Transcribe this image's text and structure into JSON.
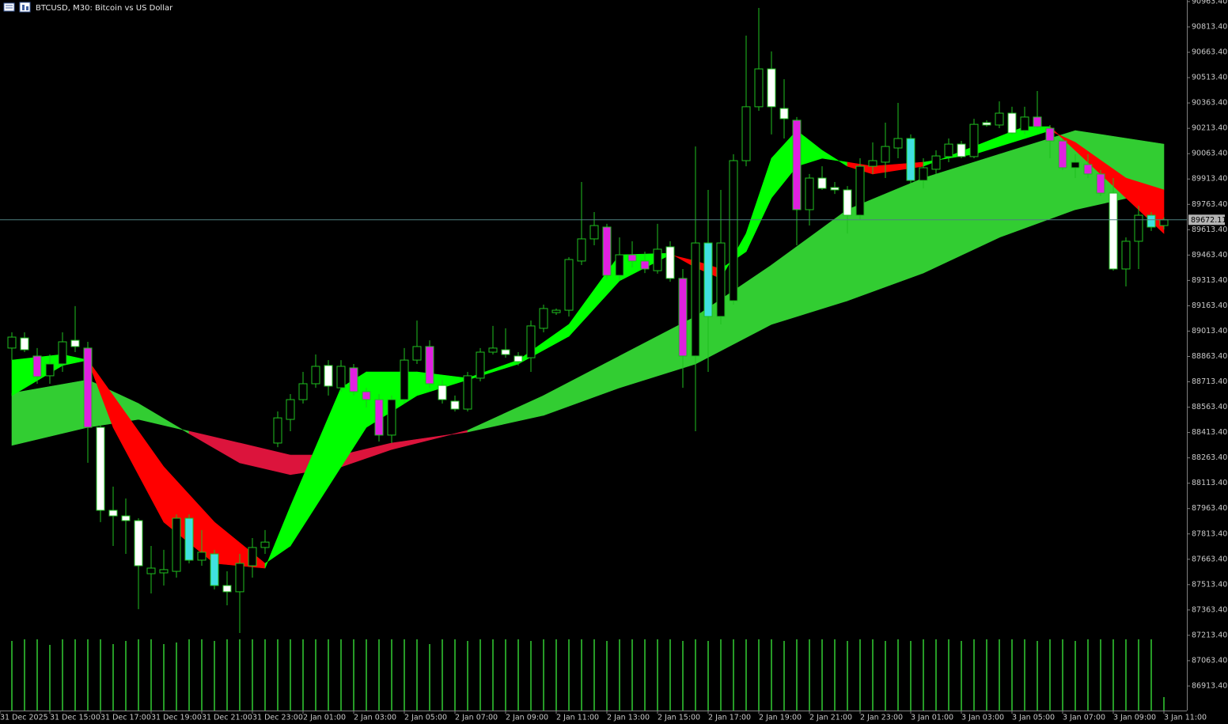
{
  "chart_data": {
    "type": "candlestick",
    "title": "BTCUSD, M30: Bitcoin vs US Dollar",
    "categories": [
      "31 Dec 2025",
      null,
      null,
      "31 Dec 15:00",
      null,
      null,
      null,
      "31 Dec 17:00",
      null,
      null,
      null,
      "31 Dec 19:00",
      null,
      null,
      null,
      "31 Dec 21:00",
      null,
      null,
      null,
      "31 Dec 23:00",
      null,
      null,
      null,
      "2 Jan 01:00",
      null,
      null,
      null,
      "2 Jan 03:00",
      null,
      null,
      null,
      "2 Jan 05:00",
      null,
      null,
      null,
      "2 Jan 07:00",
      null,
      null,
      null,
      "2 Jan 09:00",
      null,
      null,
      null,
      "2 Jan 11:00",
      null,
      null,
      null,
      "2 Jan 13:00",
      null,
      null,
      null,
      "2 Jan 15:00",
      null,
      null,
      null,
      "2 Jan 17:00",
      null,
      null,
      null,
      "2 Jan 19:00",
      null,
      null,
      null,
      "2 Jan 21:00",
      null,
      null,
      null,
      "2 Jan 23:00",
      null,
      null,
      null,
      "3 Jan 01:00",
      null,
      null,
      null,
      "3 Jan 03:00",
      null,
      null,
      null,
      "3 Jan 05:00",
      null,
      null,
      null,
      "3 Jan 07:00",
      null,
      null,
      null,
      "3 Jan 09:00",
      null,
      null,
      null,
      "3 Jan 11:00"
    ],
    "open": [
      88913,
      88973,
      88866,
      88749,
      88819,
      88959,
      88913,
      88444,
      87953,
      87920,
      87892,
      87578,
      87583,
      87592,
      87906,
      87658,
      87695,
      87508,
      87471,
      87625,
      87733,
      88351,
      88491,
      88608,
      88702,
      88810,
      88678,
      88796,
      88655,
      88608,
      88398,
      88608,
      88842,
      88922,
      88692,
      88599,
      88552,
      88735,
      88889,
      88903,
      88866,
      88856,
      89030,
      89123,
      89137,
      89428,
      89559,
      89629,
      89343,
      89465,
      89428,
      89371,
      89512,
      89325,
      88866,
      89535,
      89100,
      89193,
      90022,
      90341,
      90565,
      90331,
      90261,
      89732,
      89919,
      89863,
      89849,
      89699,
      89989,
      90013,
      90097,
      90153,
      89905,
      89971,
      90046,
      90120,
      90046,
      90247,
      90233,
      90303,
      90200,
      90280,
      90214,
      90139,
      89980,
      89999,
      89943,
      89830,
      89381,
      89545,
      89699,
      89638
    ],
    "high": [
      89006,
      89006,
      88913,
      88875,
      89006,
      89161,
      88950,
      88454,
      88093,
      88023,
      87906,
      87742,
      87719,
      87929,
      87929,
      87836,
      87719,
      87592,
      87695,
      87789,
      87836,
      88538,
      88641,
      88772,
      88875,
      88842,
      88842,
      88819,
      88678,
      88641,
      88632,
      88913,
      89076,
      88959,
      88725,
      88632,
      88772,
      88913,
      89044,
      89030,
      88889,
      89076,
      89170,
      89147,
      89451,
      89896,
      89718,
      89648,
      89568,
      89545,
      89484,
      89648,
      89545,
      89381,
      90106,
      89849,
      89849,
      90060,
      90762,
      90926,
      90668,
      90504,
      90280,
      89943,
      89989,
      89896,
      89872,
      90036,
      90130,
      90247,
      90364,
      90177,
      90036,
      90083,
      90153,
      90139,
      90270,
      90261,
      90373,
      90341,
      90341,
      90434,
      90233,
      90153,
      90060,
      90060,
      89966,
      89919,
      89568,
      89755,
      89718,
      89685
    ],
    "low": [
      88842,
      88889,
      88702,
      88702,
      88772,
      88889,
      88234,
      87883,
      87742,
      87695,
      87368,
      87461,
      87508,
      87555,
      87639,
      87625,
      87485,
      87391,
      87227,
      87555,
      87695,
      88327,
      88421,
      88585,
      88678,
      88632,
      88655,
      88632,
      88561,
      88360,
      88351,
      88585,
      88819,
      88678,
      88585,
      88538,
      88538,
      88716,
      88875,
      88856,
      88810,
      88772,
      89006,
      89109,
      89100,
      89404,
      89521,
      89325,
      89311,
      89390,
      89357,
      89353,
      89306,
      88678,
      88421,
      88772,
      89053,
      89170,
      89989,
      90317,
      90177,
      90153,
      89521,
      89638,
      89849,
      89825,
      89591,
      89671,
      89943,
      89919,
      90036,
      89886,
      89858,
      89943,
      90013,
      90036,
      90036,
      90223,
      90214,
      90177,
      90177,
      90214,
      90036,
      89966,
      89919,
      89919,
      89812,
      89371,
      89278,
      89381,
      89606,
      89615
    ],
    "close": [
      88978,
      88903,
      88744,
      88819,
      88950,
      88922,
      88444,
      87953,
      87920,
      87892,
      87625,
      87611,
      87602,
      87906,
      87658,
      87705,
      87508,
      87471,
      87639,
      87733,
      87765,
      88500,
      88608,
      88702,
      88805,
      88688,
      88805,
      88655,
      88608,
      88398,
      88608,
      88842,
      88922,
      88702,
      88608,
      88552,
      88749,
      88889,
      88913,
      88875,
      88833,
      89044,
      89147,
      89137,
      89437,
      89559,
      89638,
      89343,
      89465,
      89428,
      89381,
      89498,
      89325,
      88866,
      89535,
      89100,
      89535,
      90022,
      90341,
      90565,
      90341,
      90270,
      89732,
      89919,
      89858,
      89849,
      89699,
      89989,
      90022,
      90106,
      90153,
      89905,
      89980,
      90050,
      90120,
      90046,
      90237,
      90233,
      90303,
      90186,
      90280,
      90223,
      90139,
      89980,
      90013,
      89943,
      89830,
      89381,
      89545,
      89699,
      89629,
      89672.11
    ],
    "candle_colors": [
      null,
      null,
      "#e020e0",
      null,
      null,
      null,
      "#e020e0",
      null,
      null,
      null,
      null,
      null,
      null,
      null,
      "#40e0e0",
      null,
      "#40e0e0",
      null,
      null,
      null,
      null,
      null,
      null,
      null,
      null,
      null,
      null,
      "#e020e0",
      "#e020e0",
      "#e020e0",
      null,
      null,
      null,
      "#e020e0",
      null,
      null,
      null,
      null,
      null,
      null,
      null,
      null,
      null,
      null,
      null,
      null,
      null,
      "#e020e0",
      null,
      "#e020e0",
      "#e020e0",
      null,
      null,
      "#e020e0",
      null,
      "#40e0e0",
      null,
      null,
      null,
      null,
      null,
      null,
      "#e020e0",
      null,
      null,
      null,
      null,
      null,
      null,
      null,
      null,
      "#40e0e0",
      null,
      null,
      null,
      null,
      null,
      null,
      null,
      null,
      null,
      "#e020e0",
      "#e020e0",
      "#e020e0",
      null,
      "#e020e0",
      "#e020e0",
      null,
      null,
      null,
      "#40e0e0",
      null
    ],
    "bull_fill": "#000000",
    "bear_fill": "#ffffff",
    "body_stroke": "#1fbf1f",
    "wick_color": "#1fbf1f",
    "volumes": [
      88,
      90,
      90,
      83,
      90,
      90,
      90,
      90,
      84,
      88,
      90,
      90,
      84,
      86,
      90,
      90,
      88,
      90,
      90,
      90,
      90,
      90,
      90,
      90,
      90,
      90,
      90,
      90,
      90,
      90,
      90,
      90,
      90,
      84,
      90,
      90,
      88,
      90,
      90,
      90,
      90,
      88,
      90,
      90,
      90,
      90,
      90,
      88,
      90,
      90,
      90,
      90,
      90,
      88,
      90,
      88,
      90,
      90,
      90,
      90,
      90,
      88,
      90,
      90,
      90,
      90,
      88,
      90,
      90,
      88,
      90,
      88,
      90,
      90,
      90,
      88,
      90,
      90,
      90,
      90,
      90,
      88,
      90,
      90,
      88,
      90,
      90,
      90,
      90,
      90,
      90,
      17
    ],
    "volume_color": "#32cd32",
    "ribbons": [
      {
        "index": [
          0,
          6,
          10,
          14,
          18,
          22,
          26,
          30,
          36,
          42,
          48,
          54,
          60,
          66,
          72,
          78,
          84,
          91
        ],
        "fast": [
          88646,
          88725,
          88585,
          88407,
          88234,
          88164,
          88210,
          88313,
          88426,
          88632,
          88866,
          89100,
          89404,
          89732,
          89919,
          90060,
          90200,
          90120
        ],
        "slow": [
          88337,
          88444,
          88491,
          88421,
          88351,
          88280,
          88280,
          88351,
          88416,
          88515,
          88678,
          88819,
          89053,
          89193,
          89357,
          89568,
          89732,
          89849
        ],
        "up_color": "#32cd32",
        "down_color": "#dc143c"
      },
      {
        "index": [
          0,
          4,
          6,
          8,
          12,
          16,
          20,
          22,
          26,
          28,
          32,
          36,
          40,
          44,
          48,
          52,
          54,
          56,
          58,
          60,
          62,
          64,
          66,
          68,
          72,
          76,
          80,
          82,
          84,
          88,
          91
        ],
        "fast": [
          88842,
          88875,
          88842,
          88444,
          87883,
          87639,
          87611,
          87976,
          88678,
          88772,
          88772,
          88735,
          88842,
          89053,
          89465,
          89474,
          89390,
          89325,
          89591,
          90036,
          90200,
          90083,
          89989,
          89943,
          89989,
          90106,
          90223,
          90223,
          90083,
          89802,
          89591
        ],
        "slow": [
          88632,
          88810,
          88842,
          88632,
          88210,
          87883,
          87639,
          87742,
          88210,
          88444,
          88632,
          88725,
          88819,
          88983,
          89311,
          89465,
          89428,
          89381,
          89484,
          89802,
          89989,
          90036,
          90013,
          89989,
          90013,
          90060,
          90153,
          90200,
          90130,
          89919,
          89849
        ],
        "up_color": "#00ff00",
        "down_color": "#ff0000"
      }
    ],
    "current_price": 89672.11,
    "price_line_color": "#4f8080",
    "ylim": [
      86768.2,
      90972.6
    ],
    "yticks": [
      {
        "value": 86913.4,
        "label": "86913.40"
      },
      {
        "value": 87063.4,
        "label": "87063.40"
      },
      {
        "value": 87213.4,
        "label": "87213.40"
      },
      {
        "value": 87363.4,
        "label": "87363.40"
      },
      {
        "value": 87513.4,
        "label": "87513.40"
      },
      {
        "value": 87663.4,
        "label": "87663.40"
      },
      {
        "value": 87813.4,
        "label": "87813.40"
      },
      {
        "value": 87963.4,
        "label": "87963.40"
      },
      {
        "value": 88113.4,
        "label": "88113.40"
      },
      {
        "value": 88263.4,
        "label": "88263.40"
      },
      {
        "value": 88413.4,
        "label": "88413.40"
      },
      {
        "value": 88563.4,
        "label": "88563.40"
      },
      {
        "value": 88713.4,
        "label": "88713.40"
      },
      {
        "value": 88863.4,
        "label": "88863.40"
      },
      {
        "value": 89013.4,
        "label": "89013.40"
      },
      {
        "value": 89163.4,
        "label": "89163.40"
      },
      {
        "value": 89313.4,
        "label": "89313.40"
      },
      {
        "value": 89463.4,
        "label": "89463.40"
      },
      {
        "value": 89613.4,
        "label": "89613.40"
      },
      {
        "value": 89763.4,
        "label": "89763.40"
      },
      {
        "value": 89913.4,
        "label": "89913.40"
      },
      {
        "value": 90063.4,
        "label": "90063.40"
      },
      {
        "value": 90213.4,
        "label": "90213.40"
      },
      {
        "value": 90363.4,
        "label": "90363.40"
      },
      {
        "value": 90513.4,
        "label": "90513.40"
      },
      {
        "value": 90663.4,
        "label": "90663.40"
      },
      {
        "value": 90813.4,
        "label": "90813.40"
      },
      {
        "value": 90963.4,
        "label": "90963.40"
      }
    ],
    "grid": false
  }
}
